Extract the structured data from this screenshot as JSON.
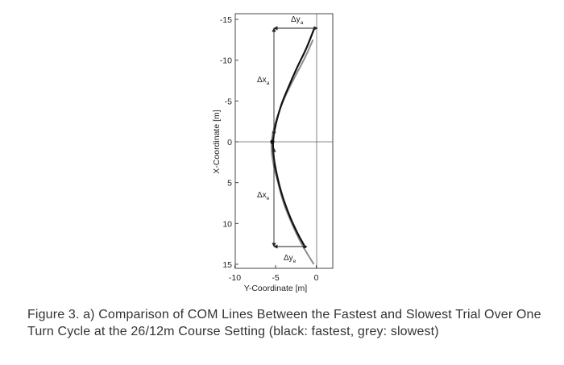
{
  "chart_data": {
    "type": "line",
    "xlabel": "Y-Coordinate [m]",
    "ylabel": "X-Coordinate [m]",
    "xlim": [
      -10,
      0
    ],
    "ylim": [
      15,
      -15
    ],
    "x_ticks": [
      "-10",
      "-5",
      "0"
    ],
    "y_ticks": [
      "-15",
      "-10",
      "-5",
      "0",
      "5",
      "10",
      "15"
    ],
    "grid": false,
    "series": [
      {
        "color": "#111111",
        "points": [
          [
            -0.2,
            -14
          ],
          [
            -1.2,
            -11.5
          ],
          [
            -2.4,
            -9
          ],
          [
            -3.5,
            -6.5
          ],
          [
            -4.3,
            -4.5
          ],
          [
            -5.0,
            -2
          ],
          [
            -5.3,
            0
          ],
          [
            -5.2,
            2
          ],
          [
            -4.8,
            4.2
          ],
          [
            -4.2,
            6.5
          ],
          [
            -3.3,
            9
          ],
          [
            -2.3,
            11.2
          ],
          [
            -1.3,
            13
          ]
        ]
      },
      {
        "color": "#8c8c8c",
        "points": [
          [
            -0.4,
            -12.5
          ],
          [
            -1.3,
            -10.5
          ],
          [
            -2.6,
            -8
          ],
          [
            -3.7,
            -5.8
          ],
          [
            -4.6,
            -3.6
          ],
          [
            -5.3,
            -1.2
          ],
          [
            -5.5,
            0.5
          ],
          [
            -5.3,
            2.5
          ],
          [
            -4.7,
            5
          ],
          [
            -4.0,
            7.5
          ],
          [
            -3.0,
            10
          ],
          [
            -1.8,
            12.5
          ],
          [
            -0.3,
            15
          ]
        ]
      }
    ],
    "marker": {
      "x": -5.4,
      "y": 0
    },
    "annotations": [
      {
        "name": "delta-y-a",
        "symbol": "Δy",
        "sub": "a"
      },
      {
        "name": "delta-x-a",
        "symbol": "Δx",
        "sub": "a"
      },
      {
        "name": "delta-x-e",
        "symbol": "Δx",
        "sub": "e"
      },
      {
        "name": "delta-y-e",
        "symbol": "Δy",
        "sub": "e"
      }
    ]
  },
  "caption": "Figure 3. a) Comparison of COM Lines Between the Fastest and Slowest Trial Over One Turn Cycle at the 26/12m Course Setting (black: fastest, grey: slowest)"
}
